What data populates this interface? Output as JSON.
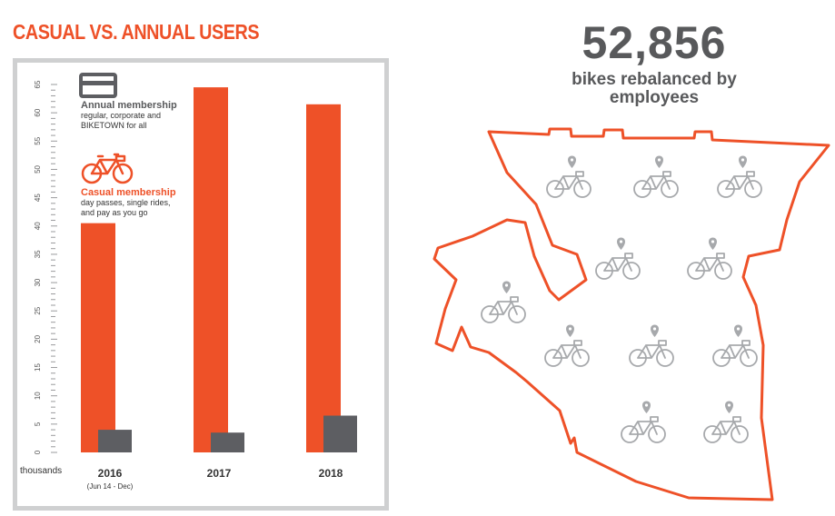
{
  "title": "CASUAL VS. ANNUAL USERS",
  "stat": {
    "number": "52,856",
    "caption_line1": "bikes rebalanced by",
    "caption_line2": "employees"
  },
  "legend": {
    "annual": {
      "title": "Annual membership",
      "desc_line1": "regular, corporate and",
      "desc_line2": "BIKETOWN for all",
      "icon": "card-icon",
      "color": "#5d5e62"
    },
    "casual": {
      "title": "Casual membership",
      "desc_line1": "day passes, single rides,",
      "desc_line2": "and pay as you go",
      "icon": "bike-icon",
      "color": "#ee5128"
    }
  },
  "chart_data": {
    "type": "bar",
    "categories": [
      "2016",
      "2017",
      "2018"
    ],
    "category_sublabels": [
      "(Jun 14 - Dec)",
      "",
      ""
    ],
    "series": [
      {
        "name": "Casual membership",
        "color": "#ee5128",
        "values": [
          40.5,
          64.5,
          61.5
        ]
      },
      {
        "name": "Annual membership",
        "color": "#5d5e62",
        "values": [
          4,
          3.5,
          6.5
        ]
      }
    ],
    "y_ticks": [
      "0",
      "5",
      "10",
      "15",
      "20",
      "25",
      "30",
      "35",
      "40",
      "45",
      "50",
      "55",
      "60",
      "65"
    ],
    "ylim": [
      0,
      65
    ],
    "ylabel": "thousands",
    "grid": false,
    "legend_position": "top-left"
  },
  "map": {
    "outline_color": "#ee5128",
    "icon_color": "#a7a9ac",
    "icons": [
      "bike-location-icon"
    ]
  }
}
